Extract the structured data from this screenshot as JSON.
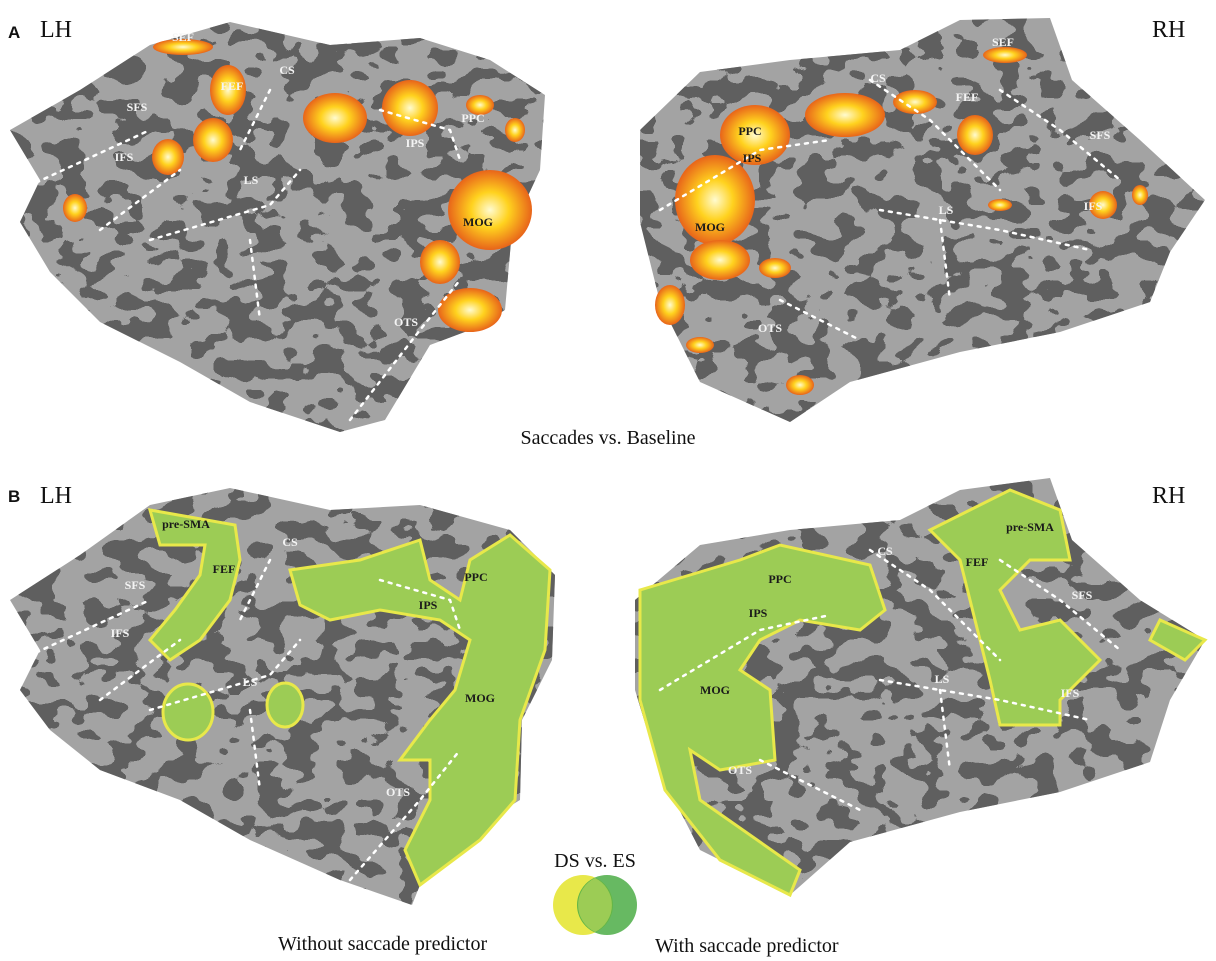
{
  "panels": [
    {
      "label": "A",
      "caption": "Saccades vs. Baseline",
      "maps": [
        {
          "hemisphere": "LH",
          "regions": [
            "SEF",
            "CS",
            "FEF",
            "SFS",
            "IFS",
            "LS",
            "IPS",
            "PPC",
            "MOG",
            "OTS"
          ]
        },
        {
          "hemisphere": "RH",
          "regions": [
            "SEF",
            "CS",
            "FEF",
            "PPC",
            "IPS",
            "SFS",
            "LS",
            "IFS",
            "MOG",
            "OTS"
          ]
        }
      ]
    },
    {
      "label": "B",
      "caption": "DS vs. ES",
      "maps": [
        {
          "hemisphere": "LH",
          "regions": [
            "pre-SMA",
            "CS",
            "FEF",
            "SFS",
            "PPC",
            "IPS",
            "IFS",
            "LS",
            "MOG",
            "OTS"
          ]
        },
        {
          "hemisphere": "RH",
          "regions": [
            "pre-SMA",
            "CS",
            "FEF",
            "PPC",
            "SFS",
            "IPS",
            "LS",
            "IFS",
            "MOG",
            "OTS"
          ]
        }
      ]
    }
  ],
  "legend": {
    "without": "Without saccade predictor",
    "with": "With saccade predictor"
  }
}
